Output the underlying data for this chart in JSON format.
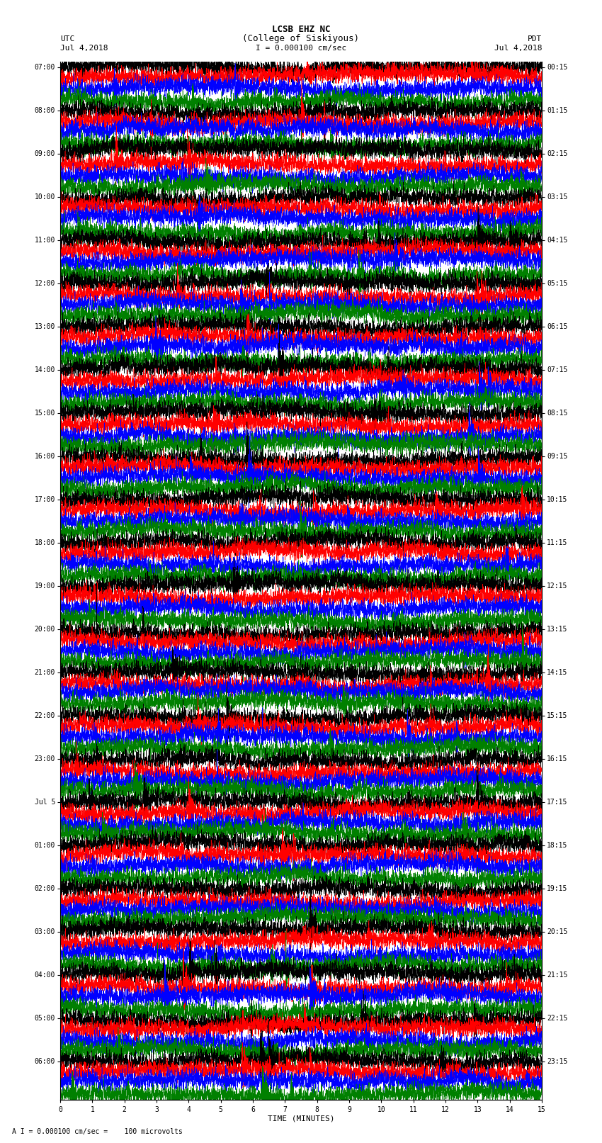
{
  "title_line1": "LCSB EHZ NC",
  "title_line2": "(College of Siskiyous)",
  "title_line3_prefix": "I",
  "title_line3_value": "= 0.000100 cm/sec",
  "left_label_top": "UTC",
  "left_label_date": "Jul 4,2018",
  "right_label_top": "PDT",
  "right_label_date": "Jul 4,2018",
  "xlabel": "TIME (MINUTES)",
  "bottom_note": "A I = 0.000100 cm/sec =    100 microvolts",
  "x_min": 0,
  "x_max": 15,
  "x_ticks": [
    0,
    1,
    2,
    3,
    4,
    5,
    6,
    7,
    8,
    9,
    10,
    11,
    12,
    13,
    14,
    15
  ],
  "colors": [
    "black",
    "red",
    "blue",
    "green"
  ],
  "background_color": "white",
  "num_traces": 96,
  "utc_labels": [
    "07:00",
    "",
    "",
    "",
    "08:00",
    "",
    "",
    "",
    "09:00",
    "",
    "",
    "",
    "10:00",
    "",
    "",
    "",
    "11:00",
    "",
    "",
    "",
    "12:00",
    "",
    "",
    "",
    "13:00",
    "",
    "",
    "",
    "14:00",
    "",
    "",
    "",
    "15:00",
    "",
    "",
    "",
    "16:00",
    "",
    "",
    "",
    "17:00",
    "",
    "",
    "",
    "18:00",
    "",
    "",
    "",
    "19:00",
    "",
    "",
    "",
    "20:00",
    "",
    "",
    "",
    "21:00",
    "",
    "",
    "",
    "22:00",
    "",
    "",
    "",
    "23:00",
    "",
    "",
    "",
    "Jul 5",
    "",
    "",
    "",
    "01:00",
    "",
    "",
    "",
    "02:00",
    "",
    "",
    "",
    "03:00",
    "",
    "",
    "",
    "04:00",
    "",
    "",
    "",
    "05:00",
    "",
    "",
    "",
    "06:00",
    "",
    "",
    ""
  ],
  "pdt_labels": [
    "00:15",
    "",
    "",
    "",
    "01:15",
    "",
    "",
    "",
    "02:15",
    "",
    "",
    "",
    "03:15",
    "",
    "",
    "",
    "04:15",
    "",
    "",
    "",
    "05:15",
    "",
    "",
    "",
    "06:15",
    "",
    "",
    "",
    "07:15",
    "",
    "",
    "",
    "08:15",
    "",
    "",
    "",
    "09:15",
    "",
    "",
    "",
    "10:15",
    "",
    "",
    "",
    "11:15",
    "",
    "",
    "",
    "12:15",
    "",
    "",
    "",
    "13:15",
    "",
    "",
    "",
    "14:15",
    "",
    "",
    "",
    "15:15",
    "",
    "",
    "",
    "16:15",
    "",
    "",
    "",
    "17:15",
    "",
    "",
    "",
    "18:15",
    "",
    "",
    "",
    "19:15",
    "",
    "",
    "",
    "20:15",
    "",
    "",
    "",
    "21:15",
    "",
    "",
    "",
    "22:15",
    "",
    "",
    "",
    "23:15",
    "",
    "",
    ""
  ]
}
